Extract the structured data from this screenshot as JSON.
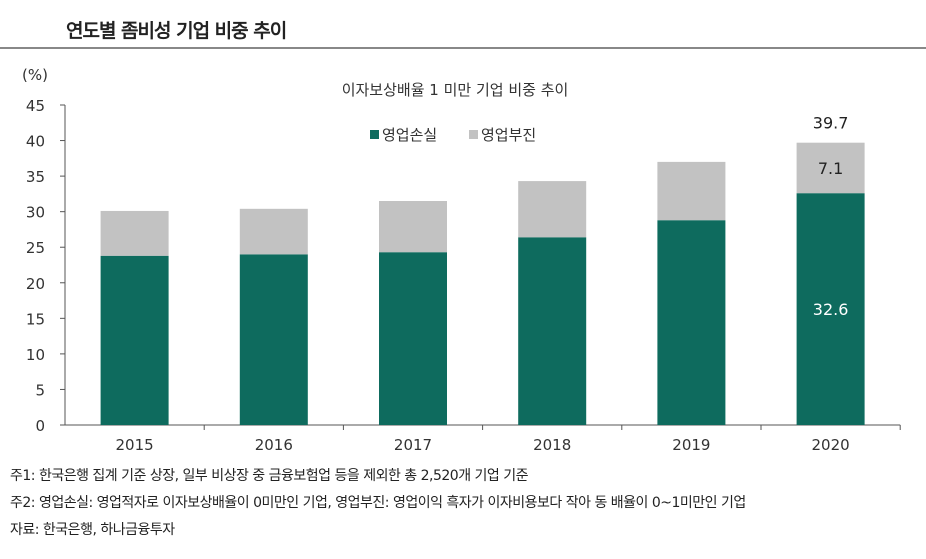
{
  "page_title": "연도별 좀비성 기업 비중 추이",
  "chart_data": {
    "type": "bar",
    "stacked": true,
    "title": "이자보상배율 1 미만 기업 비중 추이",
    "ylabel": "(%)",
    "xlabel": "",
    "ylim": [
      0,
      45
    ],
    "yticks": [
      0,
      5,
      10,
      15,
      20,
      25,
      30,
      35,
      40,
      45
    ],
    "categories": [
      "2015",
      "2016",
      "2017",
      "2018",
      "2019",
      "2020"
    ],
    "series": [
      {
        "name": "영업손실",
        "color": "#0e6b5e",
        "values": [
          23.8,
          24.0,
          24.3,
          26.4,
          28.8,
          32.6
        ]
      },
      {
        "name": "영업부진",
        "color": "#c2c2c2",
        "values": [
          6.3,
          6.4,
          7.2,
          7.9,
          8.2,
          7.1
        ]
      }
    ],
    "data_labels": {
      "total_2020": "39.7",
      "gray_2020": "7.1",
      "green_2020": "32.6"
    },
    "legend": "top-center",
    "grid": false
  },
  "notes": [
    "주1: 한국은행 집계 기준 상장, 일부 비상장 중 금융보험업 등을 제외한 총 2,520개 기업 기준",
    "주2: 영업손실: 영업적자로 이자보상배율이 0미만인 기업, 영업부진: 영업이익 흑자가 이자비용보다 작아 동 배율이 0~1미만인 기업",
    "자료: 한국은행, 하나금융투자"
  ]
}
